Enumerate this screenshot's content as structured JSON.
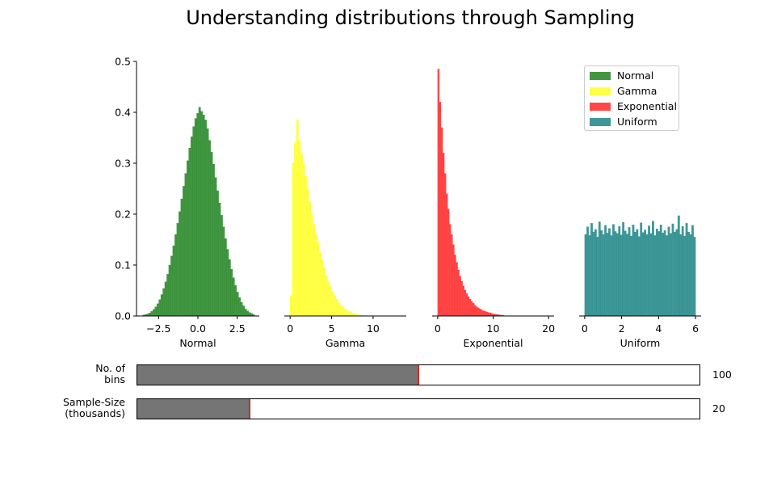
{
  "title": "Understanding distributions through Sampling",
  "chart_data": {
    "type": "bar",
    "subtype": "histogram",
    "ylim": [
      0,
      0.5
    ],
    "yticks": [
      "0.0",
      "0.1",
      "0.2",
      "0.3",
      "0.4",
      "0.5"
    ],
    "grid": false,
    "legend_position": "top-right",
    "legend": [
      "Normal",
      "Gamma",
      "Exponential",
      "Uniform"
    ],
    "panels": [
      {
        "name": "Normal",
        "xlabel": "Normal",
        "color": "#2e8b2e",
        "xlim": [
          -3.9,
          3.9
        ],
        "xticks": [
          -2.5,
          0.0,
          2.5
        ],
        "xtick_labels": [
          "−2.5",
          "0.0",
          "2.5"
        ],
        "bin_range": [
          -3.5,
          3.6
        ],
        "density": [
          0.002,
          0.003,
          0.004,
          0.006,
          0.009,
          0.013,
          0.018,
          0.024,
          0.032,
          0.042,
          0.054,
          0.067,
          0.082,
          0.1,
          0.118,
          0.138,
          0.16,
          0.182,
          0.205,
          0.23,
          0.255,
          0.28,
          0.305,
          0.33,
          0.352,
          0.372,
          0.388,
          0.398,
          0.41,
          0.402,
          0.395,
          0.385,
          0.368,
          0.345,
          0.322,
          0.298,
          0.272,
          0.246,
          0.222,
          0.198,
          0.175,
          0.152,
          0.131,
          0.111,
          0.092,
          0.075,
          0.06,
          0.047,
          0.036,
          0.027,
          0.02,
          0.014,
          0.01,
          0.007,
          0.005,
          0.003
        ]
      },
      {
        "name": "Gamma",
        "xlabel": "Gamma",
        "color": "#ffff33",
        "xlim": [
          -0.7,
          14.0
        ],
        "xticks": [
          0,
          5,
          10
        ],
        "xtick_labels": [
          "0",
          "5",
          "10"
        ],
        "bin_range": [
          0.0,
          10.0
        ],
        "density": [
          0.04,
          0.3,
          0.34,
          0.385,
          0.345,
          0.32,
          0.3,
          0.275,
          0.25,
          0.225,
          0.2,
          0.18,
          0.16,
          0.145,
          0.125,
          0.11,
          0.095,
          0.08,
          0.068,
          0.058,
          0.048,
          0.04,
          0.033,
          0.027,
          0.022,
          0.018,
          0.014,
          0.011,
          0.009,
          0.007,
          0.005,
          0.004,
          0.003,
          0.002,
          0.0015,
          0.001,
          0.001,
          0.0005,
          0.0005,
          0.0003
        ]
      },
      {
        "name": "Exponential",
        "xlabel": "Exponential",
        "color": "#ff3333",
        "xlim": [
          -1.0,
          21.0
        ],
        "xticks": [
          0,
          10,
          20
        ],
        "xtick_labels": [
          "0",
          "10",
          "20"
        ],
        "bin_range": [
          0.0,
          12.0
        ],
        "density": [
          0.485,
          0.42,
          0.37,
          0.32,
          0.28,
          0.24,
          0.21,
          0.18,
          0.16,
          0.14,
          0.12,
          0.105,
          0.09,
          0.078,
          0.068,
          0.059,
          0.051,
          0.044,
          0.038,
          0.033,
          0.029,
          0.025,
          0.021,
          0.018,
          0.016,
          0.014,
          0.012,
          0.01,
          0.009,
          0.008,
          0.007,
          0.006,
          0.005,
          0.004,
          0.0035,
          0.003,
          0.0025,
          0.002,
          0.0015,
          0.001
        ]
      },
      {
        "name": "Uniform",
        "xlabel": "Uniform",
        "color": "#2a8c8c",
        "xlim": [
          -0.3,
          6.3
        ],
        "xticks": [
          0,
          2,
          4,
          6
        ],
        "xtick_labels": [
          "0",
          "2",
          "4",
          "6"
        ],
        "bin_range": [
          0.0,
          6.0
        ],
        "density": [
          0.16,
          0.175,
          0.158,
          0.182,
          0.165,
          0.17,
          0.155,
          0.185,
          0.168,
          0.16,
          0.178,
          0.163,
          0.172,
          0.158,
          0.18,
          0.166,
          0.162,
          0.176,
          0.159,
          0.184,
          0.167,
          0.161,
          0.174,
          0.157,
          0.179,
          0.165,
          0.17,
          0.156,
          0.183,
          0.164,
          0.169,
          0.16,
          0.177,
          0.162,
          0.186,
          0.158,
          0.171,
          0.166,
          0.179,
          0.163,
          0.168,
          0.158,
          0.175,
          0.162,
          0.181,
          0.165,
          0.17,
          0.197,
          0.16,
          0.176,
          0.157,
          0.182,
          0.165,
          0.16,
          0.178,
          0.155
        ]
      }
    ]
  },
  "sliders": [
    {
      "label_line1": "No. of",
      "label_line2": "bins",
      "value": "100",
      "fraction": 0.5
    },
    {
      "label_line1": "Sample-Size",
      "label_line2": "(thousands)",
      "value": "20",
      "fraction": 0.2
    }
  ]
}
